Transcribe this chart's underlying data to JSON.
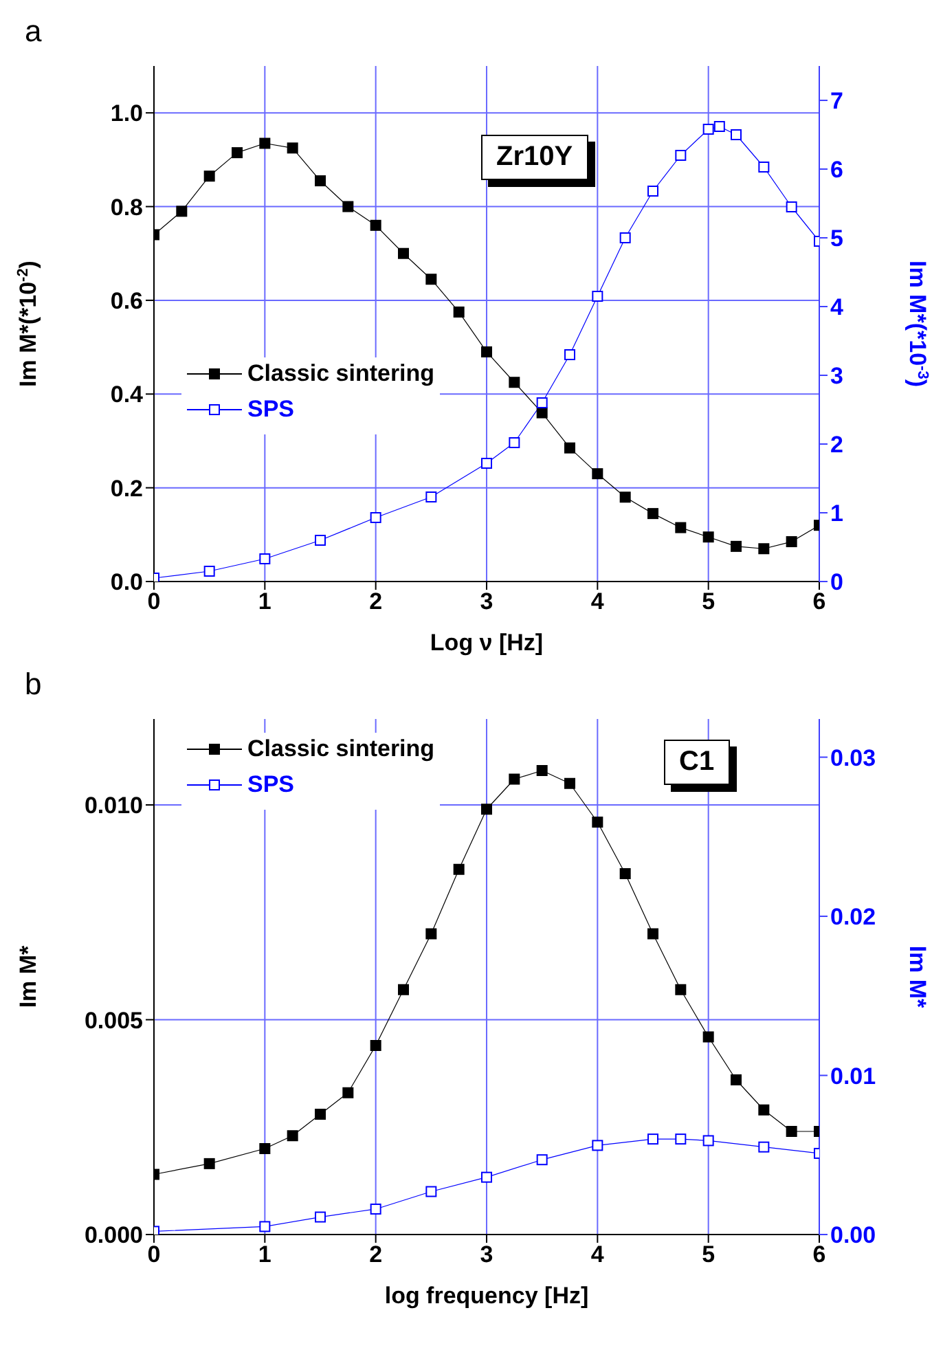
{
  "chart_data": [
    {
      "type": "line",
      "xlabel": "Log ν [Hz]",
      "ylabel": "Im M*(*10$^{-2}$)",
      "y2label": "Im M*(*10$^{-3}$)",
      "annotations": [
        "a",
        "Zr10Y"
      ],
      "xlim": [
        0,
        6
      ],
      "xticks": [
        0,
        1,
        2,
        3,
        4,
        5,
        6
      ],
      "ylim": [
        0,
        1.1
      ],
      "yticks": [
        {
          "value": 0,
          "label": "0.0"
        },
        {
          "value": 0.2,
          "label": "0.2"
        },
        {
          "value": 0.4,
          "label": "0.4"
        },
        {
          "value": 0.6,
          "label": "0.6"
        },
        {
          "value": 0.8,
          "label": "0.8"
        },
        {
          "value": 1,
          "label": "1.0"
        }
      ],
      "y2lim": [
        0,
        7.5
      ],
      "y2ticks": [
        0,
        1,
        2,
        3,
        4,
        5,
        6,
        7
      ],
      "grid": true,
      "legend": "left",
      "marker": "square",
      "series": [
        {
          "name": "Classic sintering",
          "color": "#000000",
          "x": [
            0,
            0.25,
            0.5,
            0.75,
            1,
            1.25,
            1.5,
            1.75,
            2,
            2.25,
            2.5,
            2.75,
            3,
            3.25,
            3.5,
            3.75,
            4,
            4.25,
            4.5,
            4.75,
            5,
            5.25,
            5.5,
            5.75,
            6
          ],
          "values": [
            0.74,
            0.79,
            0.865,
            0.915,
            0.935,
            0.925,
            0.855,
            0.8,
            0.76,
            0.7,
            0.645,
            0.575,
            0.49,
            0.425,
            0.36,
            0.285,
            0.23,
            0.18,
            0.145,
            0.115,
            0.095,
            0.075,
            0.07,
            0.085,
            0.12
          ]
        },
        {
          "name": "SPS",
          "color": "#0000ff",
          "axis": "y2",
          "x": [
            0,
            0.5,
            1,
            1.5,
            2,
            2.5,
            3,
            3.25,
            3.5,
            3.75,
            4,
            4.25,
            4.5,
            4.75,
            5,
            5.1,
            5.25,
            5.5,
            5.75,
            6
          ],
          "values": [
            0.05,
            0.15,
            0.33,
            0.6,
            0.93,
            1.23,
            1.72,
            2.02,
            2.6,
            3.3,
            4.15,
            5,
            5.68,
            6.2,
            6.58,
            6.62,
            6.5,
            6.03,
            5.45,
            4.95
          ]
        }
      ]
    },
    {
      "type": "line",
      "xlabel": "log frequency [Hz]",
      "ylabel": "Im M*",
      "y2label": "Im M*",
      "annotations": [
        "b",
        "C1"
      ],
      "xlim": [
        0,
        6
      ],
      "xticks": [
        0,
        1,
        2,
        3,
        4,
        5,
        6
      ],
      "ylim": [
        0,
        0.012
      ],
      "yticks": [
        {
          "value": 0,
          "label": "0.000"
        },
        {
          "value": 0.005,
          "label": "0.005"
        },
        {
          "value": 0.01,
          "label": "0.010"
        }
      ],
      "y2lim": [
        0,
        0.0324
      ],
      "y2ticks": [
        {
          "value": 0,
          "label": "0.00"
        },
        {
          "value": 0.01,
          "label": "0.01"
        },
        {
          "value": 0.02,
          "label": "0.02"
        },
        {
          "value": 0.03,
          "label": "0.03"
        }
      ],
      "grid": true,
      "legend": "top left",
      "marker": "square",
      "series": [
        {
          "name": "Classic sintering",
          "color": "#000000",
          "x": [
            0,
            0.5,
            1,
            1.25,
            1.5,
            1.75,
            2,
            2.25,
            2.5,
            2.75,
            3,
            3.25,
            3.5,
            3.75,
            4,
            4.25,
            4.5,
            4.75,
            5,
            5.25,
            5.5,
            5.75,
            6
          ],
          "values": [
            0.0014,
            0.00165,
            0.002,
            0.0023,
            0.0028,
            0.0033,
            0.0044,
            0.0057,
            0.007,
            0.0085,
            0.0099,
            0.0106,
            0.0108,
            0.0105,
            0.0096,
            0.0084,
            0.007,
            0.0057,
            0.0046,
            0.0036,
            0.0029,
            0.0024,
            0.0024
          ]
        },
        {
          "name": "SPS",
          "color": "#0000ff",
          "axis": "y2",
          "x": [
            0,
            1,
            1.5,
            2,
            2.5,
            3,
            3.5,
            4,
            4.5,
            4.75,
            5,
            5.5,
            6
          ],
          "values": [
            0.0002,
            0.0005,
            0.0011,
            0.0016,
            0.0027,
            0.0036,
            0.0047,
            0.0056,
            0.006,
            0.006,
            0.0059,
            0.0055,
            0.0051
          ]
        }
      ]
    }
  ]
}
